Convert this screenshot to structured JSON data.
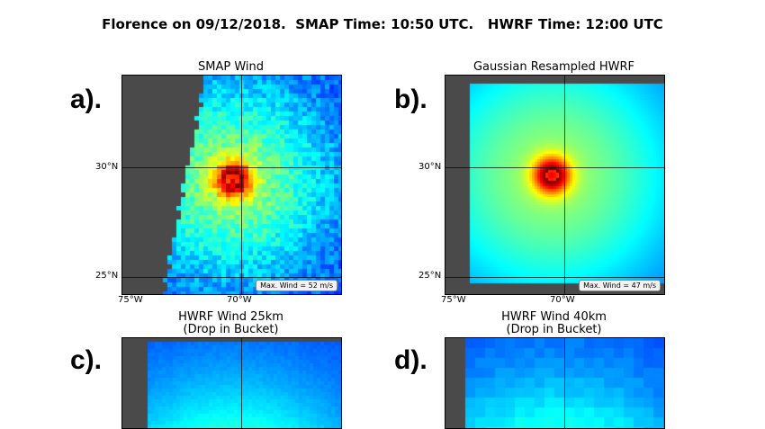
{
  "title": "Florence on 09/12/2018.  SMAP Time: 10:50 UTC.   HWRF Time: 12:00 UTC",
  "panels": [
    {
      "letter": "a).",
      "title": "SMAP Wind",
      "subtitle": "",
      "max_wind": "Max. Wind = 52 m/s",
      "lat_labels": [
        "30°N",
        "25°N"
      ],
      "lon_labels": [
        "75°W",
        "70°W"
      ]
    },
    {
      "letter": "b).",
      "title": "Gaussian Resampled HWRF",
      "subtitle": "",
      "max_wind": "Max. Wind = 47 m/s",
      "lat_labels": [
        "30°N",
        "25°N"
      ],
      "lon_labels": [
        "75°W",
        "70°W"
      ]
    },
    {
      "letter": "c).",
      "title": "HWRF Wind 25km",
      "subtitle": "(Drop in Bucket)",
      "max_wind": "",
      "lat_labels": [],
      "lon_labels": []
    },
    {
      "letter": "d).",
      "title": "HWRF Wind 40km",
      "subtitle": "(Drop in Bucket)",
      "max_wind": "",
      "lat_labels": [],
      "lon_labels": []
    }
  ],
  "colors": {
    "land": "#4a4a4a",
    "colormap": "jet"
  }
}
